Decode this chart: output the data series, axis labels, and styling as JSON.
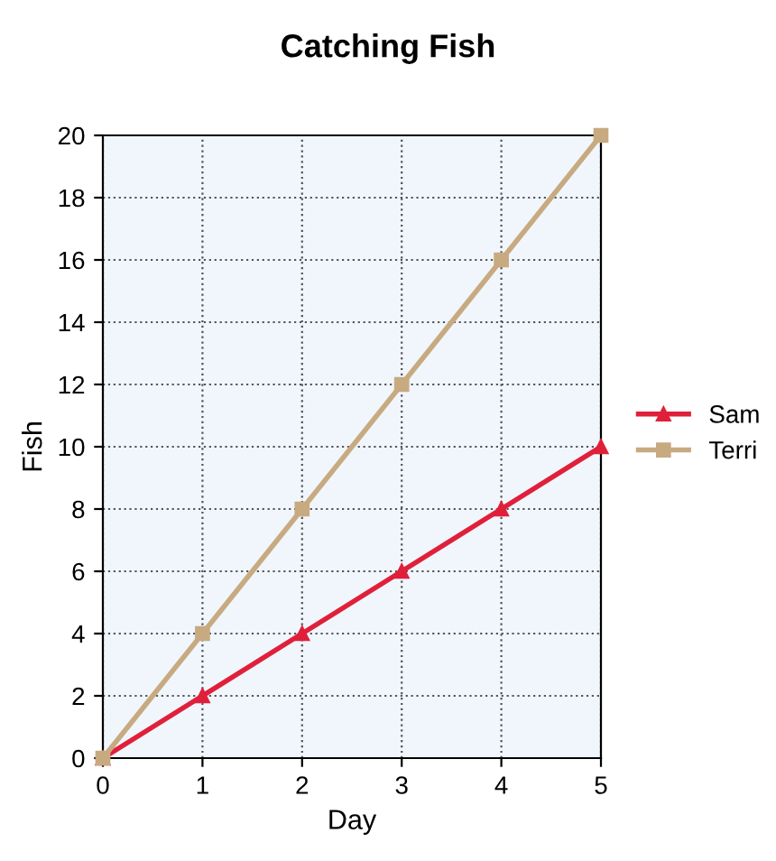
{
  "chart_data": {
    "type": "line",
    "title": "Catching Fish",
    "xlabel": "Day",
    "ylabel": "Fish",
    "x": [
      0,
      1,
      2,
      3,
      4,
      5
    ],
    "series": [
      {
        "name": "Sam",
        "color": "#e0203a",
        "values": [
          0,
          2,
          4,
          6,
          8,
          10
        ],
        "marker": "triangle"
      },
      {
        "name": "Terri",
        "color": "#c8aa80",
        "values": [
          0,
          4,
          8,
          12,
          16,
          20
        ],
        "marker": "square"
      }
    ],
    "xlim": [
      0,
      5
    ],
    "ylim": [
      0,
      20
    ],
    "xticks": [
      0,
      1,
      2,
      3,
      4,
      5
    ],
    "yticks": [
      0,
      2,
      4,
      6,
      8,
      10,
      12,
      14,
      16,
      18,
      20
    ],
    "grid": true,
    "legend": "right",
    "line_style": "solid"
  }
}
